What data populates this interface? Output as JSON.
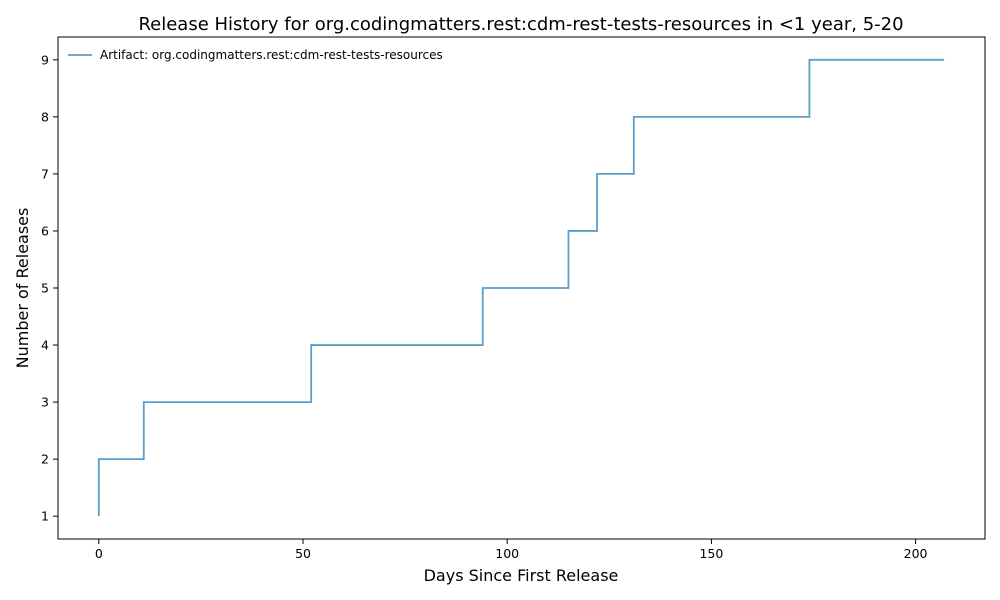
{
  "chart_data": {
    "type": "line",
    "step": true,
    "title": "Release History for org.codingmatters.rest:cdm-rest-tests-resources in <1 year, 5-20",
    "xlabel": "Days Since First Release",
    "ylabel": "Number of Releases",
    "xlim": [
      -10,
      217
    ],
    "ylim": [
      0.6,
      9.4
    ],
    "xticks": [
      0,
      50,
      100,
      150,
      200
    ],
    "yticks": [
      1,
      2,
      3,
      4,
      5,
      6,
      7,
      8,
      9
    ],
    "grid": false,
    "legend_position": "top-left",
    "series": [
      {
        "name": "Artifact: org.codingmatters.rest:cdm-rest-tests-resources",
        "color": "#5b9ec9",
        "x": [
          0,
          0,
          11,
          52,
          94,
          115,
          122,
          131,
          174,
          207
        ],
        "y": [
          1,
          2,
          3,
          4,
          5,
          6,
          7,
          8,
          9,
          9
        ]
      }
    ]
  }
}
